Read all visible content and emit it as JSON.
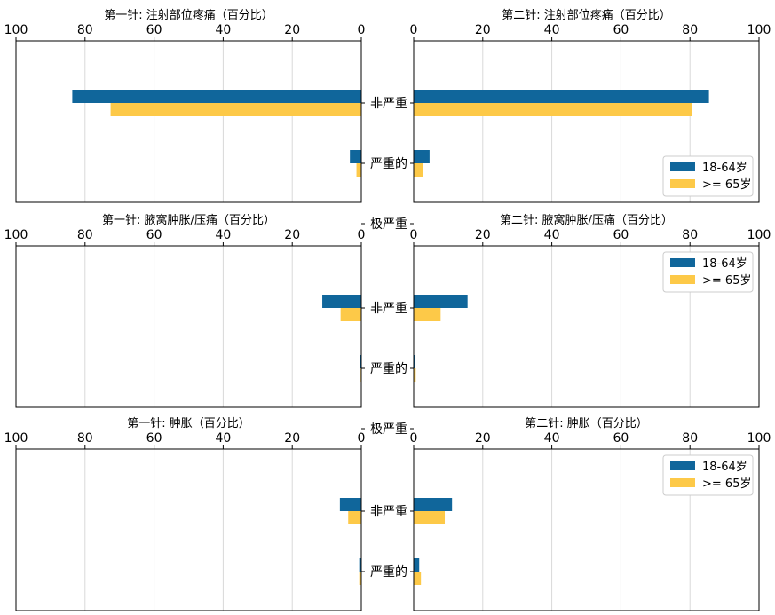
{
  "colors": {
    "series1": "#10669b",
    "series2": "#fdc948",
    "grid": "#d9d9d9",
    "axis": "#000000"
  },
  "chart_data": [
    {
      "type": "bar",
      "orientation": "horizontal",
      "direction": "reversed",
      "title": "第一针: 注射部位疼痛（百分比）",
      "categories": [
        "非严重",
        "严重的",
        "极严重"
      ],
      "xlim": [
        0,
        100
      ],
      "xticks": [
        "100",
        "80",
        "60",
        "40",
        "20",
        "0"
      ],
      "series": [
        {
          "name": "18-64岁",
          "values": [
            83.7,
            3.3,
            0
          ]
        },
        {
          "name": ">= 65岁",
          "values": [
            72.6,
            1.4,
            0
          ]
        }
      ],
      "grid": true
    },
    {
      "type": "bar",
      "orientation": "horizontal",
      "direction": "normal",
      "title": "第二针: 注射部位疼痛（百分比）",
      "categories": [
        "非严重",
        "严重的",
        "极严重"
      ],
      "xlim": [
        0,
        100
      ],
      "xticks": [
        "0",
        "20",
        "40",
        "60",
        "80",
        "100"
      ],
      "series": [
        {
          "name": "18-64岁",
          "values": [
            85.5,
            4.6,
            0
          ]
        },
        {
          "name": ">= 65岁",
          "values": [
            80.5,
            2.7,
            0
          ]
        }
      ],
      "grid": true,
      "legend": {
        "position": "bottom-right",
        "labels": [
          "18-64岁",
          ">= 65岁"
        ]
      }
    },
    {
      "type": "bar",
      "orientation": "horizontal",
      "direction": "reversed",
      "title": "第一针: 腋窝肿胀/压痛（百分比）",
      "categories": [
        "非严重",
        "严重的",
        "极严重"
      ],
      "xlim": [
        0,
        100
      ],
      "xticks": [
        "100",
        "80",
        "60",
        "40",
        "20",
        "0"
      ],
      "series": [
        {
          "name": "18-64岁",
          "values": [
            11.3,
            0.4,
            0
          ]
        },
        {
          "name": ">= 65岁",
          "values": [
            6.0,
            0.2,
            0
          ]
        }
      ],
      "grid": true
    },
    {
      "type": "bar",
      "orientation": "horizontal",
      "direction": "normal",
      "title": "第二针: 腋窝肿胀/压痛（百分比）",
      "categories": [
        "非严重",
        "严重的",
        "极严重"
      ],
      "xlim": [
        0,
        100
      ],
      "xticks": [
        "0",
        "20",
        "40",
        "60",
        "80",
        "100"
      ],
      "series": [
        {
          "name": "18-64岁",
          "values": [
            15.6,
            0.5,
            0
          ]
        },
        {
          "name": ">= 65岁",
          "values": [
            7.8,
            0.6,
            0
          ]
        }
      ],
      "grid": true,
      "legend": {
        "position": "top-right",
        "labels": [
          "18-64岁",
          ">= 65岁"
        ]
      }
    },
    {
      "type": "bar",
      "orientation": "horizontal",
      "direction": "reversed",
      "title": "第一针: 肿胀（百分比）",
      "categories": [
        "非严重",
        "严重的",
        "极严重"
      ],
      "xlim": [
        0,
        100
      ],
      "xticks": [
        "100",
        "80",
        "60",
        "40",
        "20",
        "0"
      ],
      "series": [
        {
          "name": "18-64岁",
          "values": [
            6.2,
            0.6,
            0
          ]
        },
        {
          "name": ">= 65岁",
          "values": [
            3.8,
            0.6,
            0
          ]
        }
      ],
      "grid": true
    },
    {
      "type": "bar",
      "orientation": "horizontal",
      "direction": "normal",
      "title": "第二针: 肿胀（百分比）",
      "categories": [
        "非严重",
        "严重的",
        "极严重"
      ],
      "xlim": [
        0,
        100
      ],
      "xticks": [
        "0",
        "20",
        "40",
        "60",
        "80",
        "100"
      ],
      "series": [
        {
          "name": "18-64岁",
          "values": [
            11.1,
            1.6,
            0
          ]
        },
        {
          "name": ">= 65岁",
          "values": [
            9.0,
            2.1,
            0
          ]
        }
      ],
      "grid": true,
      "legend": {
        "position": "top-right",
        "labels": [
          "18-64岁",
          ">= 65岁"
        ]
      }
    }
  ]
}
